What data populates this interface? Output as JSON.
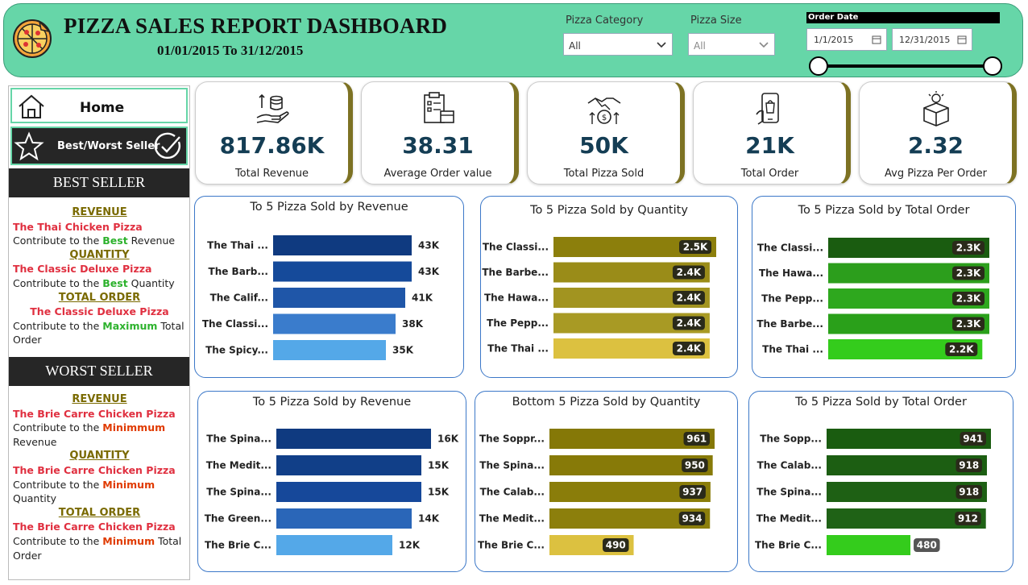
{
  "header": {
    "title": "PIZZA SALES REPORT DASHBOARD",
    "date_range": "01/01/2015 To 31/12/2015",
    "logo_icon": "pizza-icon"
  },
  "filters": {
    "category_label": "Pizza Category",
    "category_value": "All",
    "size_label": "Pizza Size",
    "size_value": "All",
    "order_date_label": "Order Date",
    "date_from": "1/1/2015",
    "date_to": "12/31/2015"
  },
  "nav": {
    "home_label": "Home",
    "best_worst_label": "Best/Worst Seller"
  },
  "best_seller": {
    "heading": "BEST SELLER",
    "revenue_h": "REVENUE",
    "revenue_pizza": "The Thai Chicken Pizza",
    "revenue_pre": "Contribute to the ",
    "revenue_hl": "Best",
    "revenue_post": " Revenue",
    "quantity_h": "QUANTITY",
    "quantity_pizza": "The Classic Deluxe Pizza",
    "quantity_pre": "Contribute to the ",
    "quantity_hl": "Best",
    "quantity_post": " Quantity",
    "order_h": "TOTAL ORDER",
    "order_pizza": "The Classic Deluxe Pizza",
    "order_pre": "Contribute to the ",
    "order_hl": "Maximum",
    "order_post": " Total Order"
  },
  "worst_seller": {
    "heading": "WORST SELLER",
    "revenue_h": "REVENUE",
    "revenue_pizza": "The Brie Carre Chicken Pizza",
    "revenue_pre": "Contribute to the ",
    "revenue_hl": "Minimmum",
    "revenue_post": " Revenue",
    "quantity_h": "QUANTITY",
    "quantity_pizza": "The Brie Carre Chicken Pizza",
    "quantity_pre": "Contribute to the ",
    "quantity_hl": "Minimum",
    "quantity_post": " Quantity",
    "order_h": "TOTAL ORDER",
    "order_pizza": "The Brie Carre Chicken Pizza",
    "order_pre": "Contribute to the ",
    "order_hl": "Minimum",
    "order_post": " Total Order"
  },
  "kpis": [
    {
      "value": "817.86K",
      "label": "Total Revenue",
      "icon": "money-hand-icon"
    },
    {
      "value": "38.31",
      "label": "Average Order value",
      "icon": "order-checklist-icon"
    },
    {
      "value": "50K",
      "label": "Total Pizza Sold",
      "icon": "handshake-coin-icon"
    },
    {
      "value": "21K",
      "label": "Total Order",
      "icon": "mobile-order-icon"
    },
    {
      "value": "2.32",
      "label": "Avg Pizza Per Order",
      "icon": "box-icon"
    }
  ],
  "colors": {
    "header_bg": "#66d6a8",
    "kpi_value": "#143d54",
    "kpi_accent": "#7d7223",
    "panel_border": "#3c78c8"
  },
  "chart_data": [
    {
      "type": "bar",
      "title": "To 5 Pizza Sold by Revenue",
      "categories": [
        "The Thai ...",
        "The Barb...",
        "The Calif...",
        "The Classi...",
        "The Spicy..."
      ],
      "values": [
        43,
        43,
        41,
        38,
        35
      ],
      "labels": [
        "43K",
        "43K",
        "41K",
        "38K",
        "35K"
      ],
      "colors": [
        "#0f3a80",
        "#154a9a",
        "#1f56a8",
        "#3a7ccc",
        "#54a8e8"
      ],
      "label_style": "outside"
    },
    {
      "type": "bar",
      "title": "To 5 Pizza Sold by Quantity",
      "categories": [
        "The Classi...",
        "The Barbe...",
        "The Hawa...",
        "The Pepp...",
        "The Thai ..."
      ],
      "values": [
        2.5,
        2.4,
        2.4,
        2.4,
        2.4
      ],
      "labels": [
        "2.5K",
        "2.4K",
        "2.4K",
        "2.4K",
        "2.4K"
      ],
      "colors": [
        "#8c7f0c",
        "#9a8c18",
        "#a29420",
        "#a89a24",
        "#dcc140"
      ],
      "label_style": "inside"
    },
    {
      "type": "bar",
      "title": "To 5 Pizza Sold by Total Order",
      "categories": [
        "The Classi...",
        "The Hawa...",
        "The Pepp...",
        "The Barbe...",
        "The Thai ..."
      ],
      "values": [
        2.3,
        2.3,
        2.3,
        2.3,
        2.2
      ],
      "labels": [
        "2.3K",
        "2.3K",
        "2.3K",
        "2.3K",
        "2.2K"
      ],
      "colors": [
        "#1a5c10",
        "#2c9e1c",
        "#2ea81e",
        "#2aa01a",
        "#34cc1c"
      ],
      "label_style": "inside"
    },
    {
      "type": "bar",
      "title": "To 5 Pizza Sold by Revenue",
      "categories": [
        "The Spina...",
        "The Medit...",
        "The Spina...",
        "The Green...",
        "The Brie C..."
      ],
      "values": [
        16,
        15,
        15,
        14,
        12
      ],
      "labels": [
        "16K",
        "15K",
        "15K",
        "14K",
        "12K"
      ],
      "colors": [
        "#0f3a80",
        "#113f88",
        "#16489a",
        "#2a66b8",
        "#54a8e8"
      ],
      "label_style": "outside"
    },
    {
      "type": "bar",
      "title": "Bottom 5 Pizza Sold by Quantity",
      "categories": [
        "The Soppr...",
        "The Spina...",
        "The Calab...",
        "The Medit...",
        "The Brie C..."
      ],
      "values": [
        961,
        950,
        937,
        934,
        490
      ],
      "labels": [
        "961",
        "950",
        "937",
        "934",
        "490"
      ],
      "colors": [
        "#857807",
        "#877a08",
        "#8a7d0a",
        "#8c7f0c",
        "#dcc140"
      ],
      "label_style": "inside"
    },
    {
      "type": "bar",
      "title": "To 5 Pizza Sold by Total Order",
      "categories": [
        "The Sopp...",
        "The Calab...",
        "The Spina...",
        "The Medit...",
        "The Brie C..."
      ],
      "values": [
        941,
        918,
        918,
        912,
        480
      ],
      "labels": [
        "941",
        "918",
        "918",
        "912",
        "480"
      ],
      "colors": [
        "#1a5c10",
        "#1c5e12",
        "#1e6014",
        "#1f6216",
        "#34cc1c"
      ],
      "label_style": "inside_end"
    }
  ]
}
